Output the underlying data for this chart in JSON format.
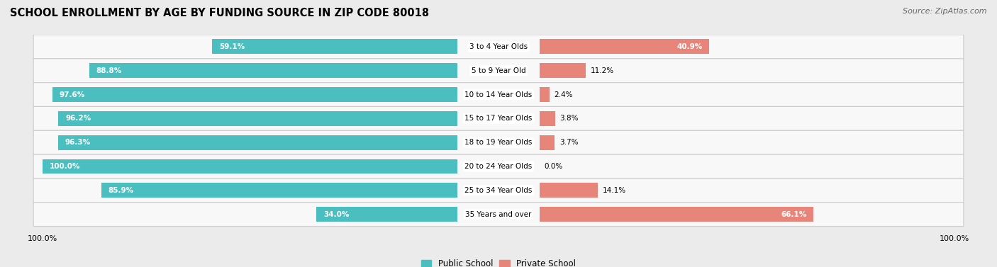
{
  "title": "SCHOOL ENROLLMENT BY AGE BY FUNDING SOURCE IN ZIP CODE 80018",
  "source": "Source: ZipAtlas.com",
  "categories": [
    "3 to 4 Year Olds",
    "5 to 9 Year Old",
    "10 to 14 Year Olds",
    "15 to 17 Year Olds",
    "18 to 19 Year Olds",
    "20 to 24 Year Olds",
    "25 to 34 Year Olds",
    "35 Years and over"
  ],
  "public_pct": [
    59.1,
    88.8,
    97.6,
    96.2,
    96.3,
    100.0,
    85.9,
    34.0
  ],
  "private_pct": [
    40.9,
    11.2,
    2.4,
    3.8,
    3.7,
    0.0,
    14.1,
    66.1
  ],
  "public_color": "#4BBFBF",
  "private_color": "#E8857A",
  "bg_color": "#EBEBEB",
  "row_bg_color": "#F8F8F8",
  "title_fontsize": 10.5,
  "source_fontsize": 8,
  "bar_label_fontsize": 7.5,
  "category_fontsize": 7.5,
  "legend_fontsize": 8.5,
  "axis_label_fontsize": 8
}
